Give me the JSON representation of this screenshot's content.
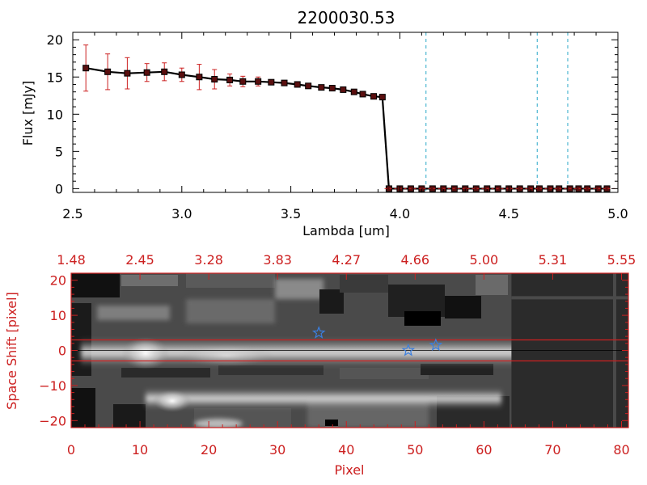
{
  "colors": {
    "black": "#000000",
    "red": "#cc2020",
    "cyan": "#2aa8c8",
    "star": "#3a7fe0"
  },
  "chart_data": [
    {
      "type": "scatter",
      "title": "2200030.53",
      "xlabel": "Lambda [um]",
      "ylabel": "Flux [mJy]",
      "xlim": [
        2.5,
        5.0
      ],
      "ylim": [
        -0.5,
        21
      ],
      "xticks": [
        2.5,
        3.0,
        3.5,
        4.0,
        4.5,
        5.0
      ],
      "xtick_labels": [
        "2.5",
        "3.0",
        "3.5",
        "4.0",
        "4.5",
        "5.0"
      ],
      "yticks": [
        0,
        5,
        10,
        15,
        20
      ],
      "ytick_labels": [
        "0",
        "5",
        "10",
        "15",
        "20"
      ],
      "series": [
        {
          "name": "Flux",
          "points": [
            {
              "x": 2.56,
              "y": 16.2,
              "err": 3.1
            },
            {
              "x": 2.66,
              "y": 15.7,
              "err": 2.4
            },
            {
              "x": 2.75,
              "y": 15.5,
              "err": 2.1
            },
            {
              "x": 2.84,
              "y": 15.6,
              "err": 1.2
            },
            {
              "x": 2.92,
              "y": 15.7,
              "err": 1.2
            },
            {
              "x": 3.0,
              "y": 15.3,
              "err": 0.9
            },
            {
              "x": 3.08,
              "y": 15.0,
              "err": 1.7
            },
            {
              "x": 3.15,
              "y": 14.7,
              "err": 1.3
            },
            {
              "x": 3.22,
              "y": 14.6,
              "err": 0.8
            },
            {
              "x": 3.28,
              "y": 14.4,
              "err": 0.7
            },
            {
              "x": 3.35,
              "y": 14.4,
              "err": 0.6
            },
            {
              "x": 3.41,
              "y": 14.3,
              "err": 0.3
            },
            {
              "x": 3.47,
              "y": 14.2,
              "err": 0.2
            },
            {
              "x": 3.53,
              "y": 14.0,
              "err": 0.2
            },
            {
              "x": 3.58,
              "y": 13.8,
              "err": 0.2
            },
            {
              "x": 3.64,
              "y": 13.6,
              "err": 0.2
            },
            {
              "x": 3.69,
              "y": 13.5,
              "err": 0.2
            },
            {
              "x": 3.74,
              "y": 13.3,
              "err": 0.2
            },
            {
              "x": 3.79,
              "y": 13.0,
              "err": 0.2
            },
            {
              "x": 3.83,
              "y": 12.7,
              "err": 0.2
            },
            {
              "x": 3.88,
              "y": 12.4,
              "err": 0.2
            },
            {
              "x": 3.92,
              "y": 12.3,
              "err": 0.2
            },
            {
              "x": 3.95,
              "y": 0,
              "err": 0
            },
            {
              "x": 4.0,
              "y": 0,
              "err": 0
            },
            {
              "x": 4.05,
              "y": 0,
              "err": 0
            },
            {
              "x": 4.1,
              "y": 0,
              "err": 0
            },
            {
              "x": 4.15,
              "y": 0,
              "err": 0
            },
            {
              "x": 4.2,
              "y": 0,
              "err": 0
            },
            {
              "x": 4.25,
              "y": 0,
              "err": 0
            },
            {
              "x": 4.3,
              "y": 0,
              "err": 0
            },
            {
              "x": 4.35,
              "y": 0,
              "err": 0
            },
            {
              "x": 4.4,
              "y": 0,
              "err": 0
            },
            {
              "x": 4.45,
              "y": 0,
              "err": 0
            },
            {
              "x": 4.5,
              "y": 0,
              "err": 0
            },
            {
              "x": 4.55,
              "y": 0,
              "err": 0
            },
            {
              "x": 4.6,
              "y": 0,
              "err": 0
            },
            {
              "x": 4.64,
              "y": 0,
              "err": 0
            },
            {
              "x": 4.69,
              "y": 0,
              "err": 0
            },
            {
              "x": 4.73,
              "y": 0,
              "err": 0
            },
            {
              "x": 4.78,
              "y": 0,
              "err": 0
            },
            {
              "x": 4.82,
              "y": 0,
              "err": 0
            },
            {
              "x": 4.86,
              "y": 0,
              "err": 0
            },
            {
              "x": 4.91,
              "y": 0,
              "err": 0
            },
            {
              "x": 4.95,
              "y": 0,
              "err": 0
            }
          ]
        }
      ],
      "vlines": [
        4.12,
        4.63,
        4.77
      ],
      "grid": false
    },
    {
      "type": "heatmap",
      "xlabel": "Pixel",
      "ylabel": "Space Shift [pixel]",
      "xlim": [
        0,
        81
      ],
      "ylim": [
        -22,
        22
      ],
      "xticks": [
        0,
        10,
        20,
        30,
        40,
        50,
        60,
        70,
        80
      ],
      "xtick_labels": [
        "0",
        "10",
        "20",
        "30",
        "40",
        "50",
        "60",
        "70",
        "80"
      ],
      "yticks": [
        -20,
        -10,
        0,
        10,
        20
      ],
      "ytick_labels": [
        "−20",
        "−10",
        "0",
        "10",
        "20"
      ],
      "top_axis_labels": [
        "1.48",
        "2.45",
        "3.28",
        "3.83",
        "4.27",
        "4.66",
        "5.00",
        "5.31",
        "5.55"
      ],
      "hlines": [
        3,
        0,
        -3
      ],
      "stars": [
        {
          "x": 36,
          "y": 5
        },
        {
          "x": 49,
          "y": 0
        },
        {
          "x": 53,
          "y": 1.5
        }
      ],
      "dark_region_start": 64,
      "grid": false
    }
  ]
}
